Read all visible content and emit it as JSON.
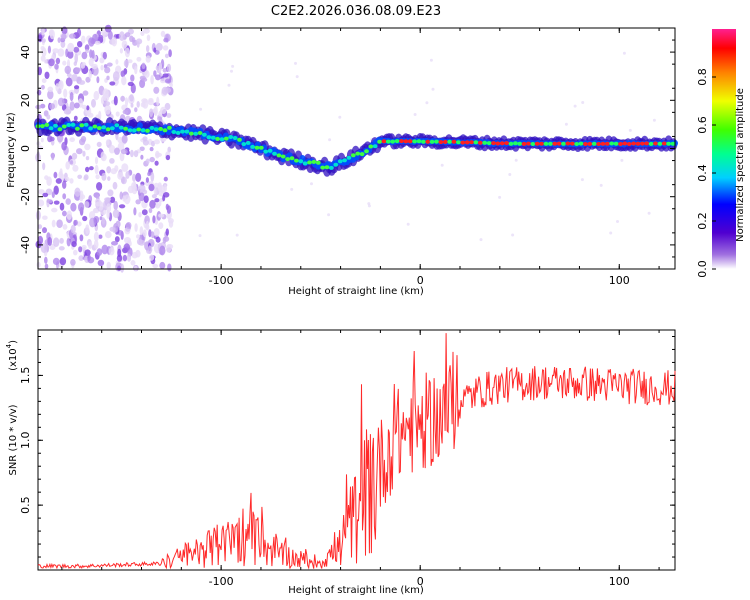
{
  "chart_data": [
    {
      "type": "heatmap",
      "title": "C2E2.2026.036.08.09.E23",
      "xlabel": "Height of straight line (km)",
      "ylabel": "Frequency (Hz)",
      "xlim": [
        -192,
        128
      ],
      "ylim": [
        -50,
        50
      ],
      "x_ticks": [
        -100,
        0,
        100
      ],
      "y_ticks": [
        -40,
        -20,
        0,
        20,
        40
      ],
      "colorbar": {
        "label": "Normalized spectral amplitude",
        "range": [
          0,
          1
        ],
        "ticks": [
          0,
          0.2,
          0.4,
          0.6,
          0.8
        ]
      },
      "ridge": {
        "x": [
          -192,
          -160,
          -130,
          -110,
          -90,
          -70,
          -60,
          -50,
          -45,
          -40,
          -30,
          -20,
          0,
          50,
          128
        ],
        "y": [
          9,
          9,
          8,
          6,
          3,
          -3,
          -5,
          -7,
          -8,
          -6,
          -2,
          3,
          3,
          2,
          2
        ]
      }
    },
    {
      "type": "line",
      "xlabel": "Height of straight line (km)",
      "ylabel": "SNR (10 * v/v)",
      "y_multiplier": "(x10",
      "y_multiplier_exp": "4",
      "xlim": [
        -192,
        128
      ],
      "ylim": [
        0,
        1.85
      ],
      "x_ticks": [
        -100,
        0,
        100
      ],
      "y_ticks": [
        0.5,
        1.0,
        1.5
      ],
      "series": [
        {
          "name": "SNR",
          "color": "#ff2a2a",
          "x": [
            -192,
            -170,
            -150,
            -130,
            -120,
            -110,
            -100,
            -90,
            -80,
            -70,
            -60,
            -50,
            -40,
            -35,
            -30,
            -25,
            -20,
            -15,
            -10,
            -5,
            0,
            10,
            20,
            30,
            40,
            60,
            80,
            100,
            128
          ],
          "values": [
            0.03,
            0.03,
            0.04,
            0.05,
            0.1,
            0.16,
            0.18,
            0.28,
            0.2,
            0.12,
            0.08,
            0.06,
            0.18,
            0.35,
            0.5,
            0.65,
            0.8,
            0.95,
            1.05,
            1.1,
            1.12,
            1.2,
            1.3,
            1.38,
            1.42,
            1.45,
            1.44,
            1.42,
            1.4
          ]
        }
      ]
    }
  ]
}
